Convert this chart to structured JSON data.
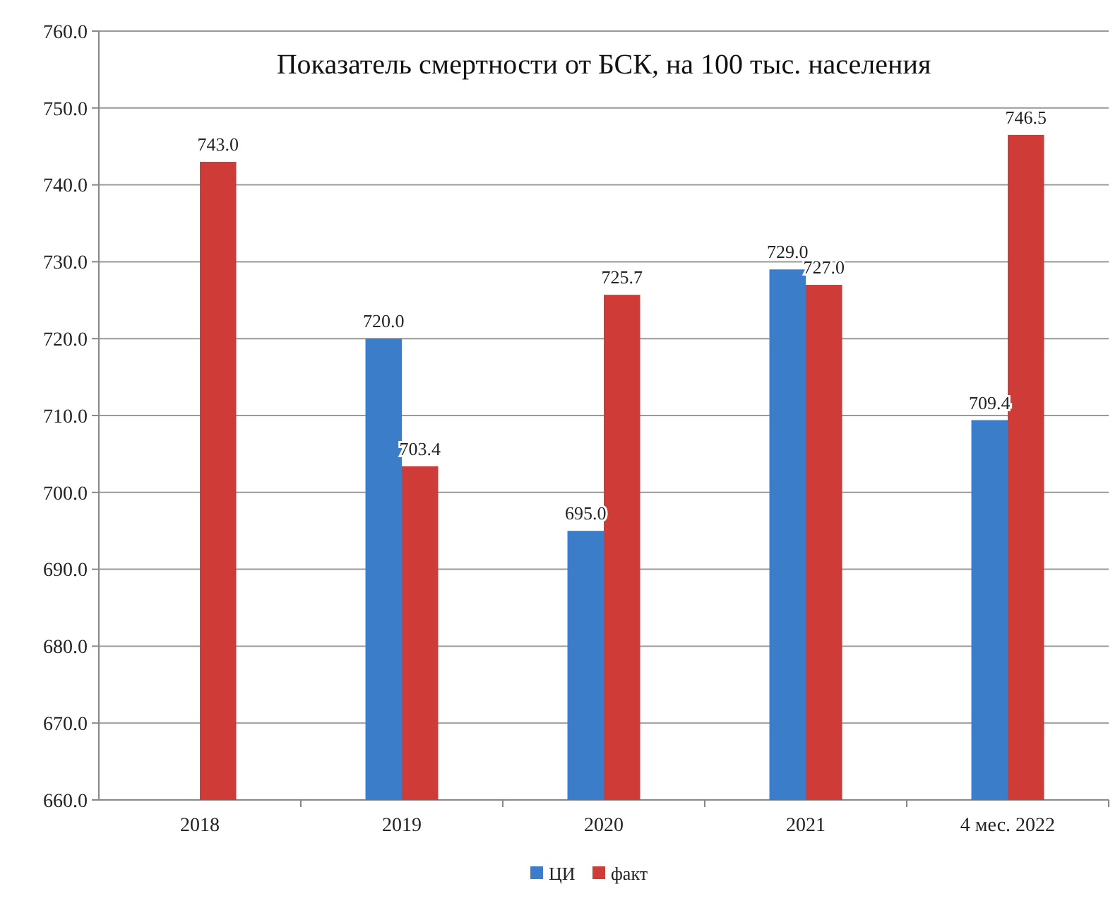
{
  "chart_data": {
    "type": "bar",
    "title": "Показатель смертности от БСК, на 100 тыс. населения",
    "categories": [
      "2018",
      "2019",
      "2020",
      "2021",
      "4 мес. 2022"
    ],
    "series": [
      {
        "name": "ЦИ",
        "color": "#3b7dc9",
        "values": [
          null,
          720.0,
          695.0,
          729.0,
          709.4
        ],
        "value_labels": [
          null,
          "720.0",
          "695.0",
          "729.0",
          "709.4"
        ]
      },
      {
        "name": "факт",
        "color": "#cf3b36",
        "values": [
          743.0,
          703.4,
          725.7,
          727.0,
          746.5
        ],
        "value_labels": [
          "743.0",
          "703.4",
          "725.7",
          "727.0",
          "746.5"
        ]
      }
    ],
    "ylim": [
      660,
      760
    ],
    "yticks": [
      {
        "value": 660,
        "label": "660.0"
      },
      {
        "value": 670,
        "label": "670.0"
      },
      {
        "value": 680,
        "label": "680.0"
      },
      {
        "value": 690,
        "label": "690.0"
      },
      {
        "value": 700,
        "label": "700.0"
      },
      {
        "value": 710,
        "label": "710.0"
      },
      {
        "value": 720,
        "label": "720.0"
      },
      {
        "value": 730,
        "label": "730.0"
      },
      {
        "value": 740,
        "label": "740.0"
      },
      {
        "value": 750,
        "label": "750.0"
      },
      {
        "value": 760,
        "label": "760.0"
      }
    ],
    "grid": "y",
    "legend": "bottom"
  }
}
